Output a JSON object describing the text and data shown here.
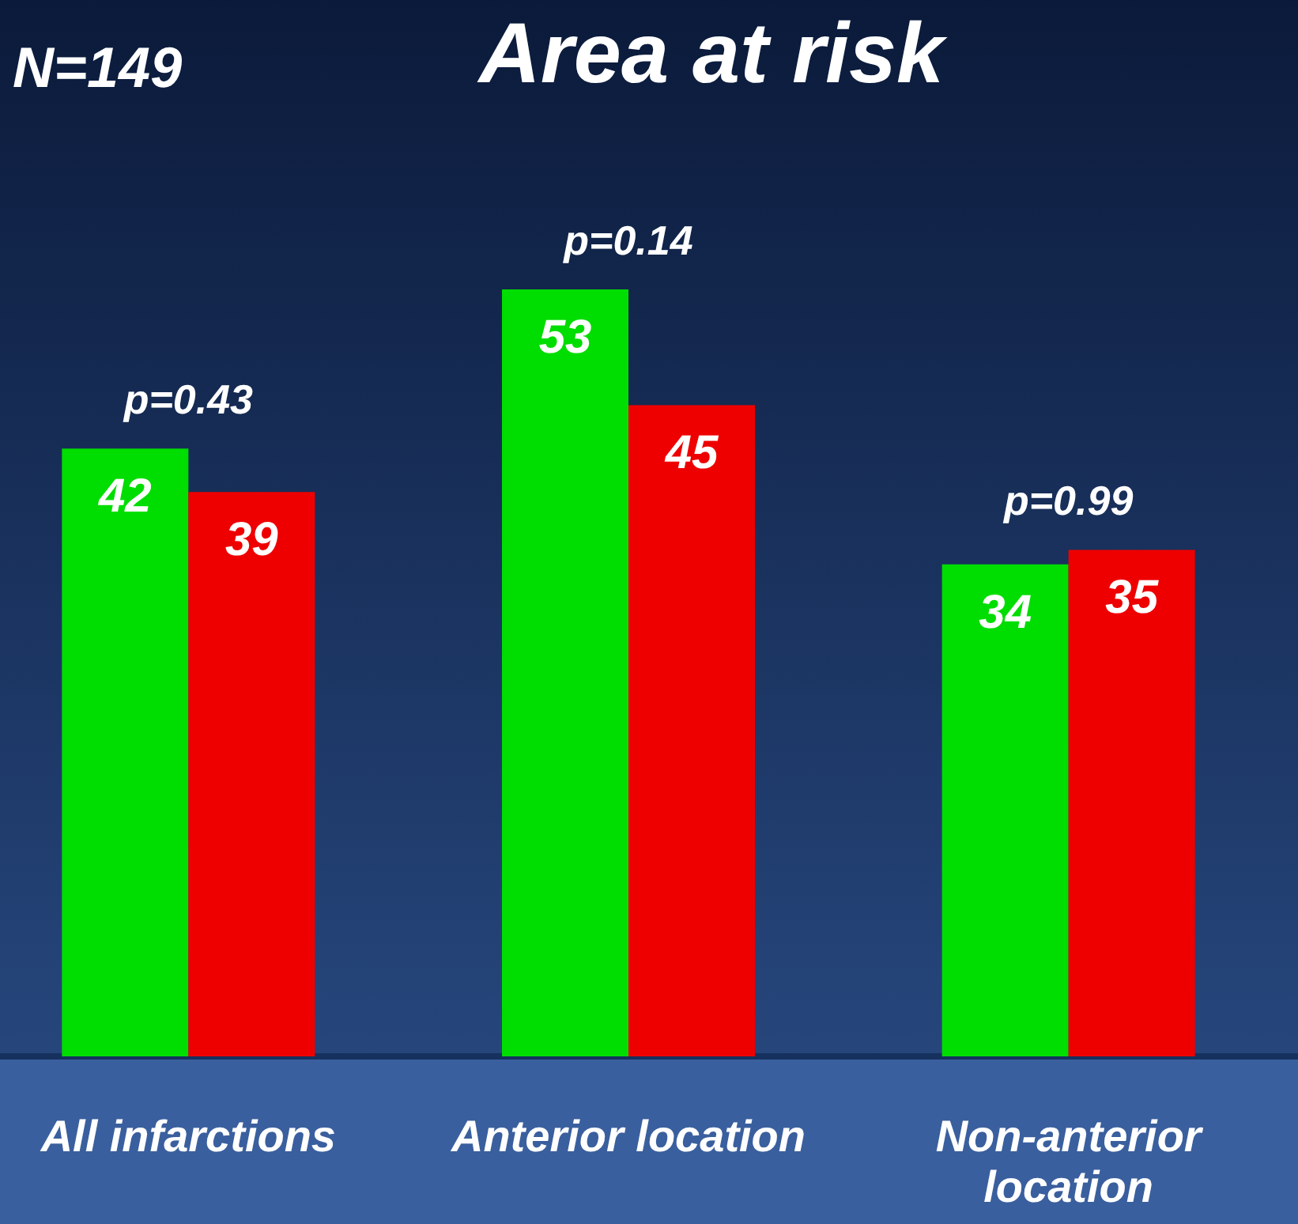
{
  "chart_data": {
    "type": "bar",
    "title": "Area at risk",
    "categories": [
      "All infarctions",
      "Anterior location",
      "Non-anterior location"
    ],
    "series": [
      {
        "color": "#00dd00",
        "values": [
          42,
          53,
          34
        ]
      },
      {
        "color": "#ee0000",
        "values": [
          39,
          45,
          35
        ]
      }
    ],
    "data_labels": true,
    "annotations": [
      "N=149",
      {
        "text": "p=0.43",
        "x": "All infarctions",
        "y": 42
      },
      {
        "text": "p=0.14",
        "x": "Anterior location",
        "y": 53
      },
      {
        "text": "p=0.99",
        "x": "Non-anterior location",
        "y": 35
      }
    ]
  }
}
